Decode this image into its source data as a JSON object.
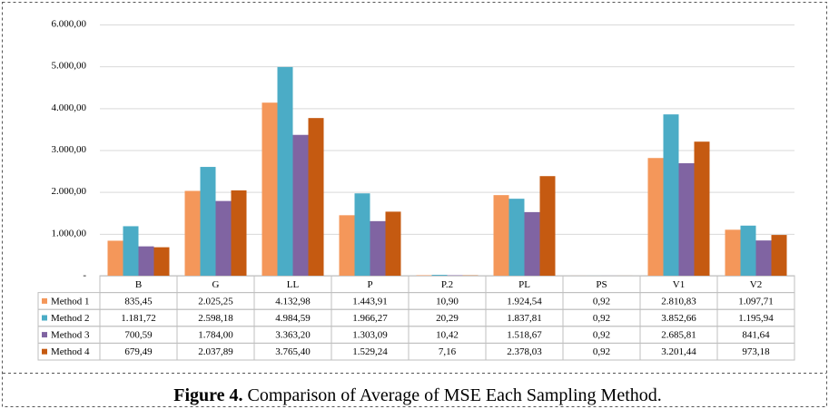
{
  "chart_data": {
    "type": "bar",
    "figure_label": "Figure 4.",
    "title": "Comparison of Average of MSE Each Sampling Method.",
    "categories": [
      "B",
      "G",
      "LL",
      "P",
      "P.2",
      "PL",
      "PS",
      "V1",
      "V2"
    ],
    "series": [
      {
        "name": "Method 1",
        "color": "#f4975a",
        "values": [
          835.45,
          2025.25,
          4132.98,
          1443.91,
          10.9,
          1924.54,
          0.92,
          2810.83,
          1097.71
        ],
        "value_labels": [
          "835,45",
          "2.025,25",
          "4.132,98",
          "1.443,91",
          "10,90",
          "1.924,54",
          "0,92",
          "2.810,83",
          "1.097,71"
        ]
      },
      {
        "name": "Method 2",
        "color": "#4bacc6",
        "values": [
          1181.72,
          2598.18,
          4984.59,
          1966.27,
          20.29,
          1837.81,
          0.92,
          3852.66,
          1195.94
        ],
        "value_labels": [
          "1.181,72",
          "2.598,18",
          "4.984,59",
          "1.966,27",
          "20,29",
          "1.837,81",
          "0,92",
          "3.852,66",
          "1.195,94"
        ]
      },
      {
        "name": "Method 3",
        "color": "#8064a2",
        "values": [
          700.59,
          1784.0,
          3363.2,
          1303.09,
          10.42,
          1518.67,
          0.92,
          2685.81,
          841.64
        ],
        "value_labels": [
          "700,59",
          "1.784,00",
          "3.363,20",
          "1.303,09",
          "10,42",
          "1.518,67",
          "0,92",
          "2.685,81",
          "841,64"
        ]
      },
      {
        "name": "Method 4",
        "color": "#c55a11",
        "values": [
          679.49,
          2037.89,
          3765.4,
          1529.24,
          7.16,
          2378.03,
          0.92,
          3201.44,
          973.18
        ],
        "value_labels": [
          "679,49",
          "2.037,89",
          "3.765,40",
          "1.529,24",
          "7,16",
          "2.378,03",
          "0,92",
          "3.201,44",
          "973,18"
        ]
      }
    ],
    "ylim": [
      0,
      6000
    ],
    "yticks": [
      {
        "value": 0,
        "label": "-"
      },
      {
        "value": 1000,
        "label": "1.000,00"
      },
      {
        "value": 2000,
        "label": "2.000,00"
      },
      {
        "value": 3000,
        "label": "3.000,00"
      },
      {
        "value": 4000,
        "label": "4.000,00"
      },
      {
        "value": 5000,
        "label": "5.000,00"
      },
      {
        "value": 6000,
        "label": "6.000,00"
      }
    ],
    "grid": true
  }
}
